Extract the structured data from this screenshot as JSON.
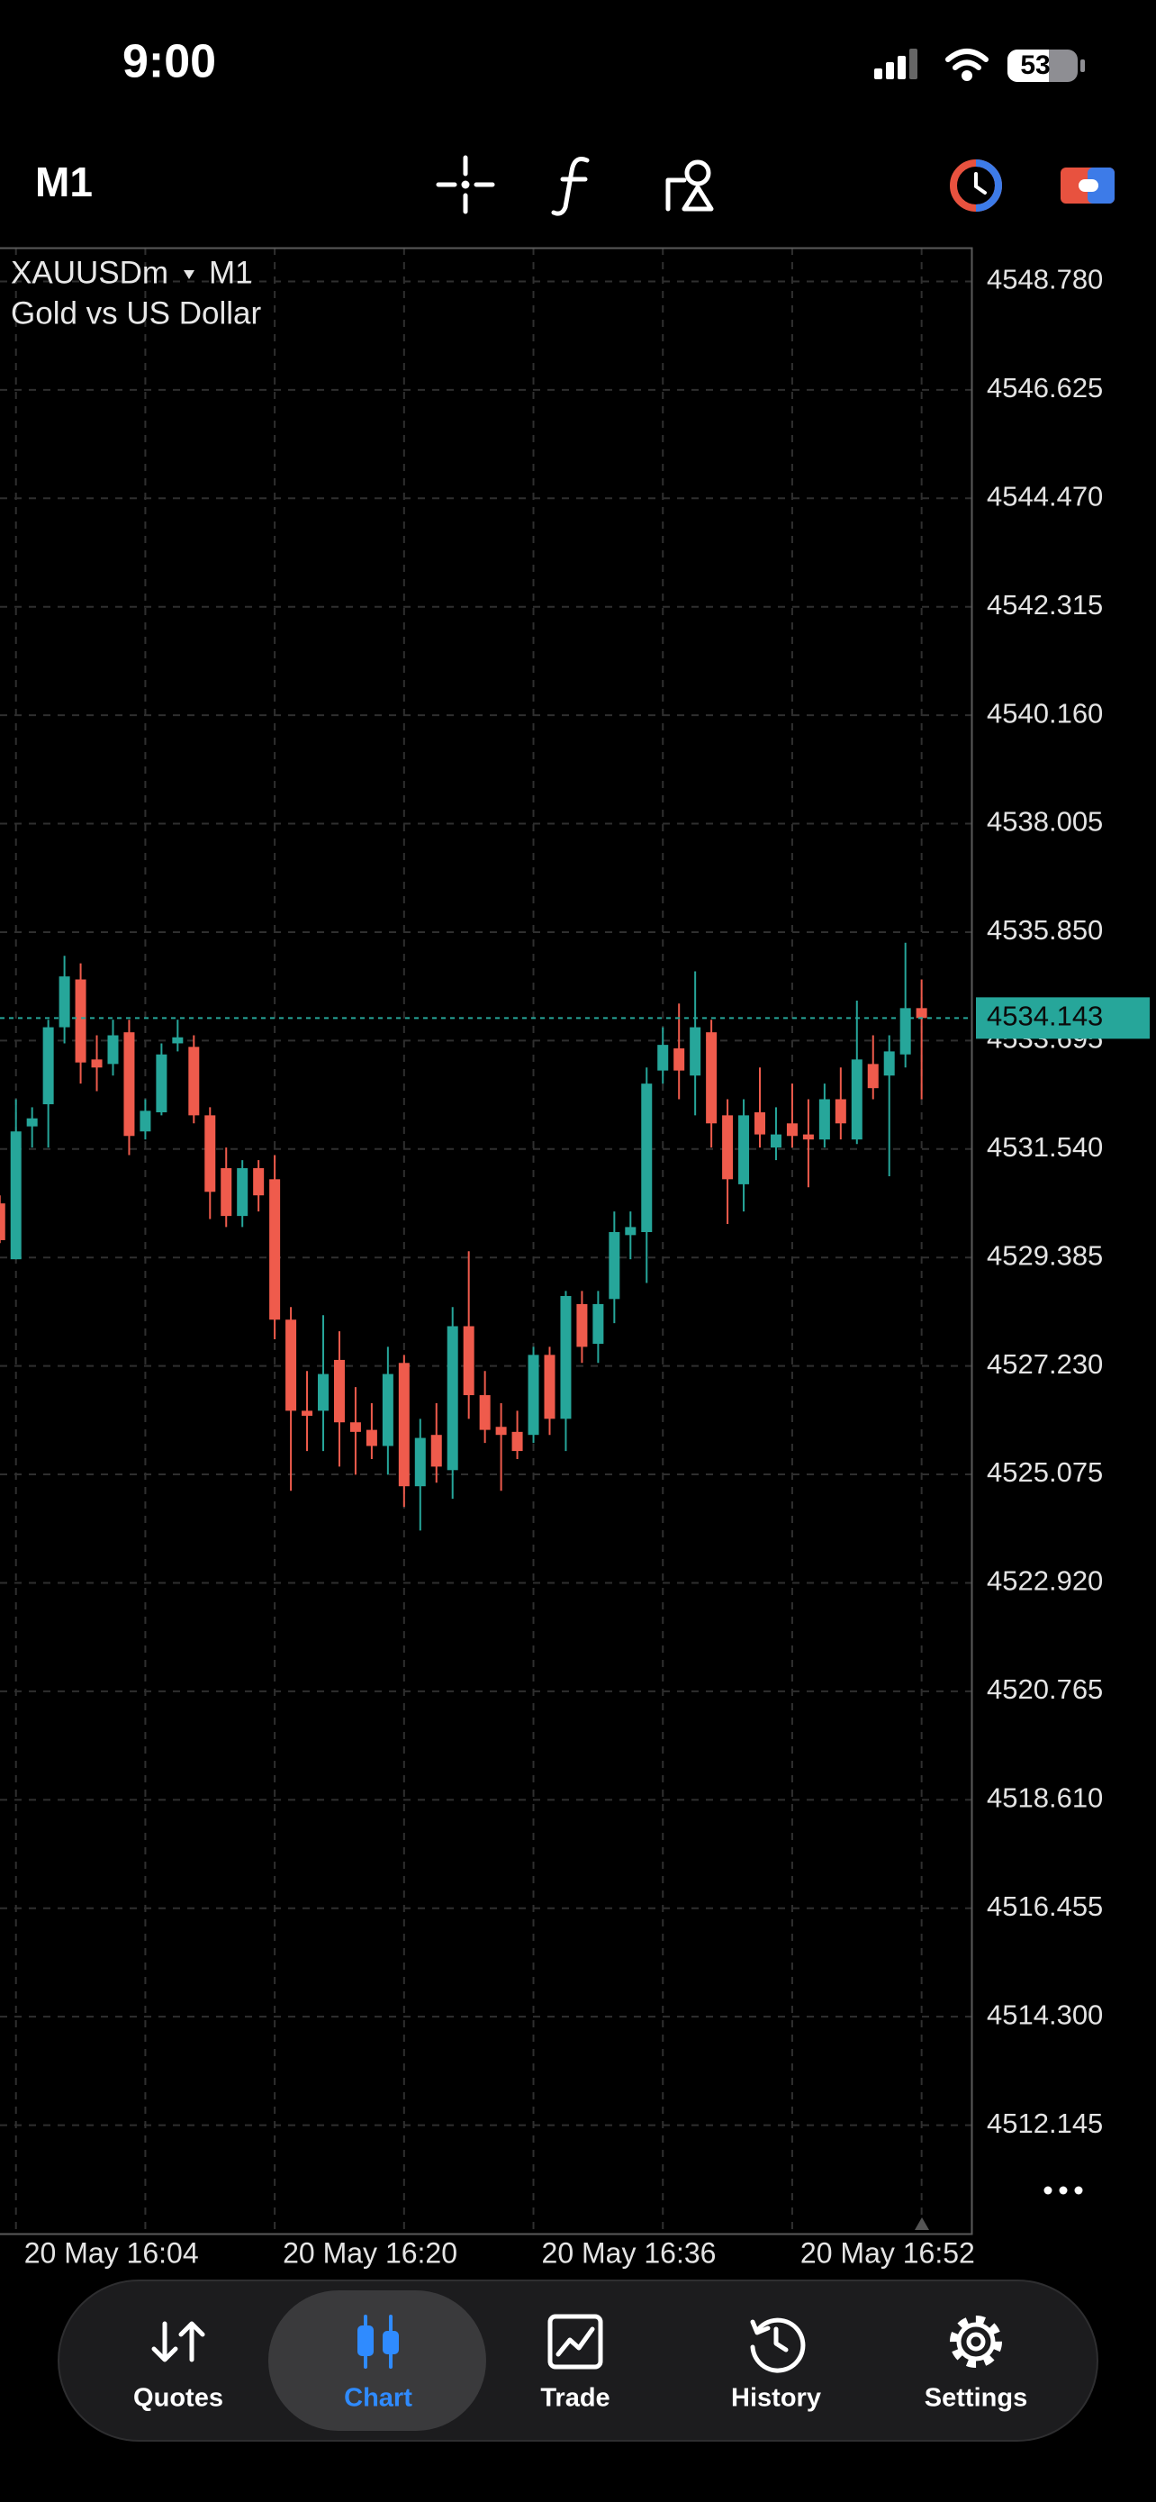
{
  "status_bar": {
    "time": "9:00",
    "battery": "53"
  },
  "toolbar": {
    "timeframe": "M1"
  },
  "chart_data": {
    "type": "candlestick",
    "symbol": "XAUUSDm",
    "timeframe": "M1",
    "description": "Gold vs US Dollar",
    "categories": [
      null,
      "20 May 16:04",
      null,
      null,
      null,
      null,
      null,
      null,
      null,
      null,
      null,
      null,
      null,
      null,
      null,
      null,
      null,
      "20 May 16:20",
      null,
      null,
      null,
      null,
      null,
      null,
      null,
      null,
      null,
      null,
      null,
      null,
      null,
      null,
      null,
      "20 May 16:36",
      null,
      null,
      null,
      null,
      null,
      null,
      null,
      null,
      null,
      null,
      null,
      null,
      null,
      null,
      null,
      "20 May 16:52",
      null,
      null,
      null,
      null,
      null,
      null,
      null,
      null
    ],
    "open": [
      4530.46,
      4529.35,
      4531.99,
      4532.43,
      4533.96,
      4534.91,
      4533.32,
      4533.23,
      4533.86,
      4531.89,
      4532.27,
      4533.64,
      4533.57,
      4532.21,
      4531.16,
      4530.21,
      4531.16,
      4530.94,
      4528.15,
      4526.34,
      4526.34,
      4527.35,
      4526.11,
      4525.96,
      4525.64,
      4527.29,
      4524.84,
      4525.86,
      4525.16,
      4528.02,
      4526.65,
      4526.02,
      4525.92,
      4525.86,
      4527.45,
      4526.18,
      4528.46,
      4527.67,
      4528.56,
      4529.83,
      4529.89,
      4533.1,
      4533.54,
      4533.0,
      4533.86,
      4532.21,
      4530.84,
      4532.27,
      4531.57,
      4532.05,
      4531.83,
      4531.73,
      4532.53,
      4531.73,
      4533.23,
      4533.0,
      4533.42,
      4534.34
    ],
    "high": [
      4530.62,
      4532.53,
      4532.37,
      4534.11,
      4535.38,
      4535.23,
      4533.8,
      4534.11,
      4534.11,
      4532.53,
      4533.64,
      4534.11,
      4533.8,
      4532.37,
      4531.57,
      4531.32,
      4531.32,
      4531.42,
      4528.4,
      4527.13,
      4528.24,
      4527.92,
      4526.81,
      4526.49,
      4527.61,
      4527.45,
      4526.18,
      4526.49,
      4528.4,
      4529.51,
      4527.13,
      4526.49,
      4526.34,
      4527.61,
      4527.61,
      4528.72,
      4528.72,
      4528.72,
      4530.3,
      4530.3,
      4533.16,
      4533.96,
      4534.43,
      4535.07,
      4534.11,
      4532.53,
      4532.53,
      4533.16,
      4532.37,
      4532.84,
      4532.53,
      4532.84,
      4533.16,
      4534.49,
      4533.8,
      4533.8,
      4535.64,
      4534.91
    ],
    "low": [
      4529.67,
      4529.35,
      4531.57,
      4531.57,
      4533.64,
      4532.84,
      4532.69,
      4533.0,
      4531.42,
      4531.73,
      4532.21,
      4533.48,
      4532.05,
      4530.15,
      4529.99,
      4529.99,
      4530.3,
      4527.76,
      4524.75,
      4525.54,
      4525.54,
      4525.23,
      4525.07,
      4525.38,
      4525.07,
      4524.43,
      4523.96,
      4524.91,
      4524.59,
      4526.18,
      4525.7,
      4524.75,
      4525.38,
      4525.7,
      4525.86,
      4525.54,
      4527.29,
      4527.29,
      4528.08,
      4529.35,
      4528.88,
      4532.84,
      4532.53,
      4532.21,
      4531.57,
      4530.05,
      4530.3,
      4531.57,
      4531.32,
      4531.57,
      4530.78,
      4531.57,
      4531.73,
      4531.64,
      4532.53,
      4531.0,
      4533.16,
      4532.53
    ],
    "close": [
      4529.73,
      4531.89,
      4532.15,
      4533.96,
      4534.97,
      4533.26,
      4533.16,
      4533.8,
      4531.8,
      4532.3,
      4533.42,
      4533.76,
      4532.21,
      4530.69,
      4530.21,
      4531.16,
      4530.62,
      4528.15,
      4526.34,
      4526.24,
      4527.07,
      4526.11,
      4525.92,
      4525.64,
      4527.07,
      4524.84,
      4525.8,
      4525.23,
      4528.02,
      4526.65,
      4525.96,
      4525.86,
      4525.54,
      4527.45,
      4526.18,
      4528.62,
      4527.61,
      4528.46,
      4529.89,
      4529.99,
      4532.84,
      4533.61,
      4533.1,
      4533.96,
      4532.05,
      4530.94,
      4532.21,
      4531.83,
      4531.83,
      4531.8,
      4531.73,
      4532.53,
      4532.05,
      4533.32,
      4532.75,
      4533.48,
      4534.34,
      4534.143
    ],
    "up_color": "#26a69a",
    "down_color": "#ef5b4c",
    "current_price": 4534.143,
    "ylim": [
      4509.99,
      4549.45
    ],
    "yticks": [
      {
        "value": 4548.78,
        "label": "4548.780"
      },
      4546.625,
      {
        "value": 4544.47,
        "label": "4544.470"
      },
      4542.315,
      {
        "value": 4540.16,
        "label": "4540.160"
      },
      4538.005,
      {
        "value": 4535.85,
        "label": "4535.850"
      },
      4533.695,
      {
        "value": 4531.54,
        "label": "4531.540"
      },
      4529.385,
      {
        "value": 4527.23,
        "label": "4527.230"
      },
      4525.075,
      {
        "value": 4522.92,
        "label": "4522.920"
      },
      4520.765,
      {
        "value": 4518.61,
        "label": "4518.610"
      },
      4516.455,
      {
        "value": 4514.3,
        "label": "4514.300"
      },
      4512.145
    ],
    "grid": true
  },
  "tab_bar": {
    "tabs": [
      "Quotes",
      "Chart",
      "Trade",
      "History",
      "Settings"
    ]
  }
}
